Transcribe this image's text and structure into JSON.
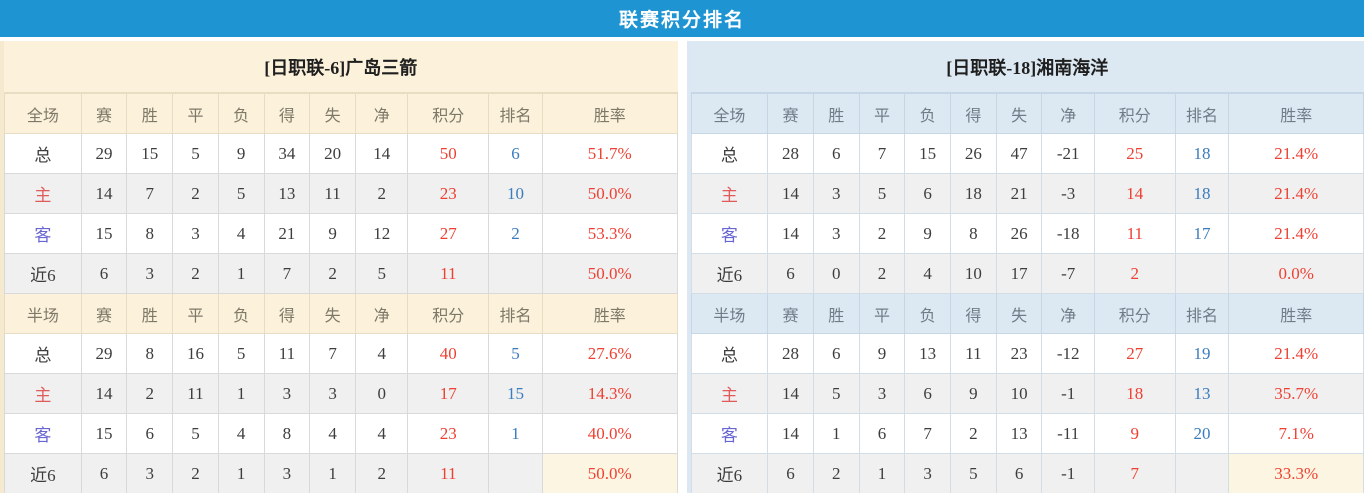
{
  "title": "联赛积分排名",
  "colors": {
    "title_bar_blue": "#1e94d2",
    "accent_red": "#ee4032",
    "rank_blue": "#3a7cbd",
    "home_theme_cream": "#fcf1da",
    "guest_theme_blue": "#dce8f2",
    "home_row_label_red": "#e25b5b",
    "away_row_label_purple": "#6965d2",
    "even_row_gray": "#f0f0f0",
    "highlight_cream_cell": "#fcf5e2"
  },
  "layout": {
    "col_widths_percent": [
      11.4,
      6.8,
      6.8,
      6.8,
      6.8,
      6.8,
      6.8,
      7.8,
      12,
      8,
      20
    ]
  },
  "columns": {
    "full": [
      "全场",
      "赛",
      "胜",
      "平",
      "负",
      "得",
      "失",
      "净",
      "积分",
      "排名",
      "胜率"
    ],
    "half": [
      "半场",
      "赛",
      "胜",
      "平",
      "负",
      "得",
      "失",
      "净",
      "积分",
      "排名",
      "胜率"
    ]
  },
  "teams": [
    {
      "name": "[日职联-6]广岛三箭",
      "full": {
        "rows": [
          {
            "label": "总",
            "type": "total",
            "cells": [
              "29",
              "15",
              "5",
              "9",
              "34",
              "20",
              "14"
            ],
            "points": "50",
            "rank": "6",
            "rate": "51.7%"
          },
          {
            "label": "主",
            "type": "home",
            "cells": [
              "14",
              "7",
              "2",
              "5",
              "13",
              "11",
              "2"
            ],
            "points": "23",
            "rank": "10",
            "rate": "50.0%"
          },
          {
            "label": "客",
            "type": "away",
            "cells": [
              "15",
              "8",
              "3",
              "4",
              "21",
              "9",
              "12"
            ],
            "points": "27",
            "rank": "2",
            "rate": "53.3%"
          },
          {
            "label": "近6",
            "type": "recent",
            "cells": [
              "6",
              "3",
              "2",
              "1",
              "7",
              "2",
              "5"
            ],
            "points": "11",
            "rank": "",
            "rate": "50.0%"
          }
        ]
      },
      "half": {
        "rows": [
          {
            "label": "总",
            "type": "total",
            "cells": [
              "29",
              "8",
              "16",
              "5",
              "11",
              "7",
              "4"
            ],
            "points": "40",
            "rank": "5",
            "rate": "27.6%"
          },
          {
            "label": "主",
            "type": "home",
            "cells": [
              "14",
              "2",
              "11",
              "1",
              "3",
              "3",
              "0"
            ],
            "points": "17",
            "rank": "15",
            "rate": "14.3%"
          },
          {
            "label": "客",
            "type": "away",
            "cells": [
              "15",
              "6",
              "5",
              "4",
              "8",
              "4",
              "4"
            ],
            "points": "23",
            "rank": "1",
            "rate": "40.0%"
          },
          {
            "label": "近6",
            "type": "recent",
            "cells": [
              "6",
              "3",
              "2",
              "1",
              "3",
              "1",
              "2"
            ],
            "points": "11",
            "rank": "",
            "rate": "50.0%"
          }
        ]
      }
    },
    {
      "name": "[日职联-18]湘南海洋",
      "full": {
        "rows": [
          {
            "label": "总",
            "type": "total",
            "cells": [
              "28",
              "6",
              "7",
              "15",
              "26",
              "47",
              "-21"
            ],
            "points": "25",
            "rank": "18",
            "rate": "21.4%"
          },
          {
            "label": "主",
            "type": "home",
            "cells": [
              "14",
              "3",
              "5",
              "6",
              "18",
              "21",
              "-3"
            ],
            "points": "14",
            "rank": "18",
            "rate": "21.4%"
          },
          {
            "label": "客",
            "type": "away",
            "cells": [
              "14",
              "3",
              "2",
              "9",
              "8",
              "26",
              "-18"
            ],
            "points": "11",
            "rank": "17",
            "rate": "21.4%"
          },
          {
            "label": "近6",
            "type": "recent",
            "cells": [
              "6",
              "0",
              "2",
              "4",
              "10",
              "17",
              "-7"
            ],
            "points": "2",
            "rank": "",
            "rate": "0.0%"
          }
        ]
      },
      "half": {
        "rows": [
          {
            "label": "总",
            "type": "total",
            "cells": [
              "28",
              "6",
              "9",
              "13",
              "11",
              "23",
              "-12"
            ],
            "points": "27",
            "rank": "19",
            "rate": "21.4%"
          },
          {
            "label": "主",
            "type": "home",
            "cells": [
              "14",
              "5",
              "3",
              "6",
              "9",
              "10",
              "-1"
            ],
            "points": "18",
            "rank": "13",
            "rate": "35.7%"
          },
          {
            "label": "客",
            "type": "away",
            "cells": [
              "14",
              "1",
              "6",
              "7",
              "2",
              "13",
              "-11"
            ],
            "points": "9",
            "rank": "20",
            "rate": "7.1%"
          },
          {
            "label": "近6",
            "type": "recent",
            "cells": [
              "6",
              "2",
              "1",
              "3",
              "5",
              "6",
              "-1"
            ],
            "points": "7",
            "rank": "",
            "rate": "33.3%"
          }
        ]
      }
    }
  ]
}
